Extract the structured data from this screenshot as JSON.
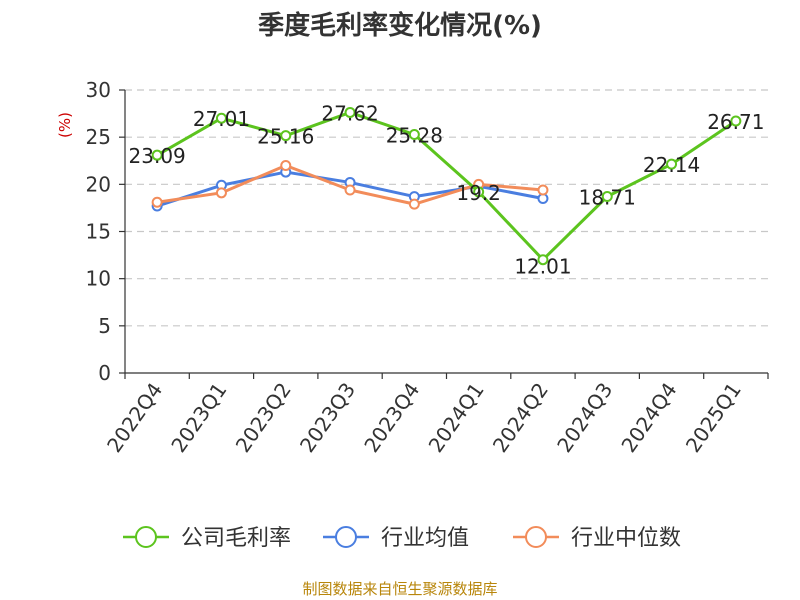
{
  "chart_data": {
    "type": "line",
    "title": "季度毛利率变化情况(%)",
    "ylabel": "(%)",
    "xlabel": "",
    "ylim": [
      0,
      30
    ],
    "yticks": [
      0,
      5,
      10,
      15,
      20,
      25,
      30
    ],
    "grid": true,
    "legend_position": "bottom",
    "categories": [
      "2022Q4",
      "2023Q1",
      "2023Q2",
      "2023Q3",
      "2023Q4",
      "2024Q1",
      "2024Q2",
      "2024Q3",
      "2024Q4",
      "2025Q1"
    ],
    "series": [
      {
        "name": "公司毛利率",
        "color": "#5cc41e",
        "values": [
          23.09,
          27.01,
          25.16,
          27.62,
          25.28,
          19.2,
          12.01,
          18.71,
          22.14,
          26.71
        ],
        "labels": [
          "23.09",
          "27.01",
          "25.16",
          "27.62",
          "25.28",
          "19.2",
          "12.01",
          "18.71",
          "22.14",
          "26.71"
        ]
      },
      {
        "name": "行业均值",
        "color": "#4a7ee0",
        "values": [
          17.7,
          19.9,
          21.3,
          20.2,
          18.7,
          19.8,
          18.5,
          null,
          null,
          null
        ]
      },
      {
        "name": "行业中位数",
        "color": "#f28c5a",
        "values": [
          18.1,
          19.1,
          22.0,
          19.4,
          17.9,
          20.0,
          19.4,
          null,
          null,
          null
        ]
      }
    ],
    "footer": "制图数据来自恒生聚源数据库"
  }
}
